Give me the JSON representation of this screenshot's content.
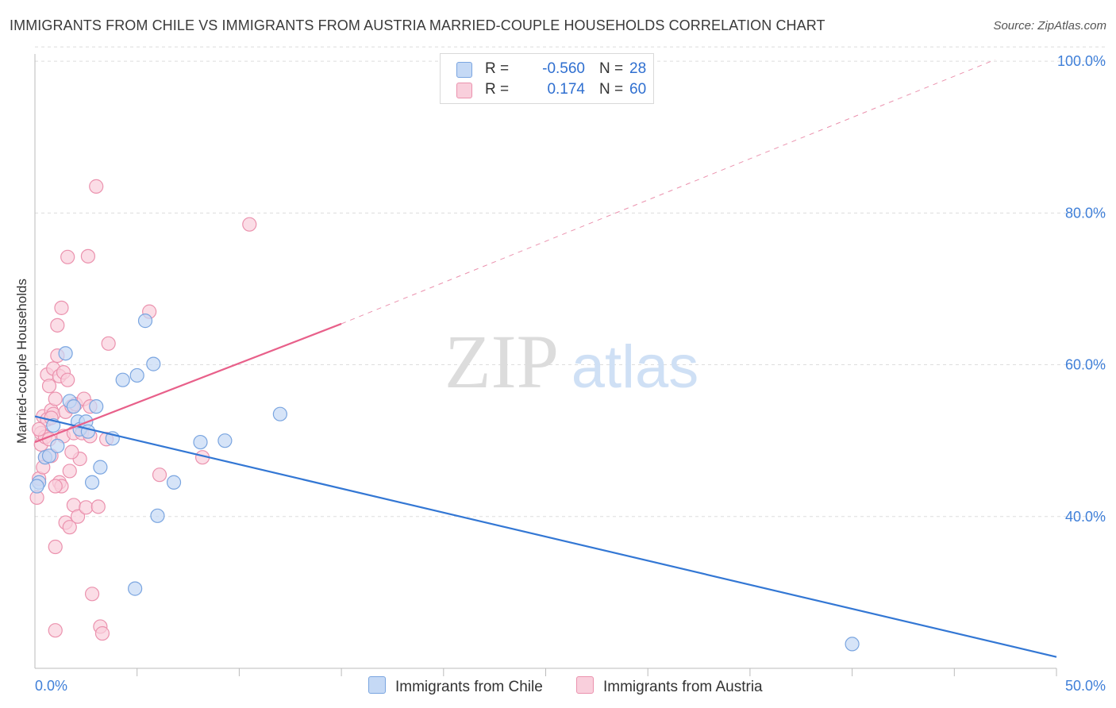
{
  "title": "IMMIGRANTS FROM CHILE VS IMMIGRANTS FROM AUSTRIA MARRIED-COUPLE HOUSEHOLDS CORRELATION CHART",
  "source": "Source: ZipAtlas.com",
  "watermark": {
    "zip": "ZIP",
    "atlas": "atlas"
  },
  "legend": {
    "series1": {
      "r_label": "R =",
      "r_value": "-0.560",
      "n_label": "N =",
      "n_value": "28"
    },
    "series2": {
      "r_label": "R =",
      "r_value": "0.174",
      "n_label": "N =",
      "n_value": "60"
    }
  },
  "colors": {
    "chile_fill": "#c5d9f5",
    "chile_stroke": "#7aa5e0",
    "chile_line": "#3377d4",
    "austria_fill": "#f9cfdc",
    "austria_stroke": "#eb92ae",
    "austria_line": "#e8608a",
    "axis_text": "#3f7fd8",
    "grid": "#dddddd"
  },
  "chart_data": {
    "type": "scatter",
    "title": "IMMIGRANTS FROM CHILE VS IMMIGRANTS FROM AUSTRIA MARRIED-COUPLE HOUSEHOLDS CORRELATION CHART",
    "xlabel": "",
    "ylabel": "Married-couple Households",
    "xlim": [
      0,
      50
    ],
    "ylim": [
      20,
      102
    ],
    "x_tick_labels": {
      "min": "0.0%",
      "max": "50.0%"
    },
    "y_ticks": [
      {
        "value": 40,
        "label": "40.0%"
      },
      {
        "value": 60,
        "label": "60.0%"
      },
      {
        "value": 80,
        "label": "80.0%"
      },
      {
        "value": 100,
        "label": "100.0%"
      }
    ],
    "series": [
      {
        "name": "Immigrants from Chile",
        "r": -0.56,
        "n": 28,
        "trend": {
          "x0": 0,
          "y0": 53.2,
          "x1": 50,
          "y1": 21.5
        },
        "points": [
          [
            0.2,
            44.5
          ],
          [
            0.5,
            47.8
          ],
          [
            0.7,
            48.0
          ],
          [
            0.9,
            52.0
          ],
          [
            1.1,
            49.3
          ],
          [
            1.5,
            61.5
          ],
          [
            1.7,
            55.2
          ],
          [
            1.9,
            54.5
          ],
          [
            2.1,
            52.5
          ],
          [
            2.2,
            51.5
          ],
          [
            2.5,
            52.5
          ],
          [
            2.6,
            51.2
          ],
          [
            2.8,
            44.5
          ],
          [
            3.0,
            54.5
          ],
          [
            3.2,
            46.5
          ],
          [
            3.8,
            50.3
          ],
          [
            4.3,
            58.0
          ],
          [
            4.9,
            30.5
          ],
          [
            5.0,
            58.6
          ],
          [
            5.4,
            65.8
          ],
          [
            5.8,
            60.1
          ],
          [
            6.0,
            40.1
          ],
          [
            6.8,
            44.5
          ],
          [
            8.1,
            49.8
          ],
          [
            9.3,
            50.0
          ],
          [
            12.0,
            53.5
          ],
          [
            40.0,
            23.2
          ],
          [
            0.1,
            44.0
          ]
        ]
      },
      {
        "name": "Immigrants from Austria",
        "r": 0.174,
        "n": 60,
        "trend": {
          "x0": 0,
          "y0": 49.8,
          "x1": 15,
          "y1": 65.4
        },
        "trend_extension": {
          "x0": 15,
          "y0": 65.4,
          "x1": 47,
          "y1": 100.2
        },
        "points": [
          [
            0.1,
            42.5
          ],
          [
            0.2,
            45.0
          ],
          [
            0.3,
            49.5
          ],
          [
            0.3,
            51.0
          ],
          [
            0.4,
            53.2
          ],
          [
            0.5,
            50.5
          ],
          [
            0.5,
            47.8
          ],
          [
            0.6,
            52.8
          ],
          [
            0.6,
            58.7
          ],
          [
            0.7,
            50.2
          ],
          [
            0.7,
            57.2
          ],
          [
            0.8,
            54.0
          ],
          [
            0.8,
            48.0
          ],
          [
            0.9,
            59.5
          ],
          [
            0.9,
            53.5
          ],
          [
            1.0,
            55.5
          ],
          [
            1.0,
            36.0
          ],
          [
            1.0,
            25.0
          ],
          [
            1.1,
            65.2
          ],
          [
            1.1,
            61.2
          ],
          [
            1.2,
            58.5
          ],
          [
            1.2,
            44.5
          ],
          [
            1.3,
            44.0
          ],
          [
            1.3,
            67.5
          ],
          [
            1.4,
            59.0
          ],
          [
            1.4,
            50.6
          ],
          [
            1.5,
            53.8
          ],
          [
            1.5,
            39.2
          ],
          [
            1.6,
            74.2
          ],
          [
            1.6,
            58.0
          ],
          [
            1.7,
            38.6
          ],
          [
            1.7,
            46.0
          ],
          [
            1.8,
            54.5
          ],
          [
            1.9,
            51.0
          ],
          [
            1.9,
            41.5
          ],
          [
            2.0,
            54.8
          ],
          [
            2.1,
            40.0
          ],
          [
            2.2,
            47.6
          ],
          [
            2.3,
            51.0
          ],
          [
            2.4,
            55.5
          ],
          [
            2.5,
            41.2
          ],
          [
            2.6,
            74.3
          ],
          [
            2.7,
            54.5
          ],
          [
            2.7,
            50.6
          ],
          [
            2.8,
            29.8
          ],
          [
            3.0,
            83.5
          ],
          [
            3.1,
            41.3
          ],
          [
            3.2,
            25.5
          ],
          [
            3.3,
            24.6
          ],
          [
            3.5,
            50.2
          ],
          [
            3.6,
            62.8
          ],
          [
            5.6,
            67.0
          ],
          [
            6.1,
            45.5
          ],
          [
            8.2,
            47.8
          ],
          [
            10.5,
            78.5
          ],
          [
            0.2,
            51.5
          ],
          [
            0.4,
            46.5
          ],
          [
            0.8,
            53.0
          ],
          [
            1.0,
            44.0
          ],
          [
            1.8,
            48.5
          ]
        ]
      }
    ]
  }
}
